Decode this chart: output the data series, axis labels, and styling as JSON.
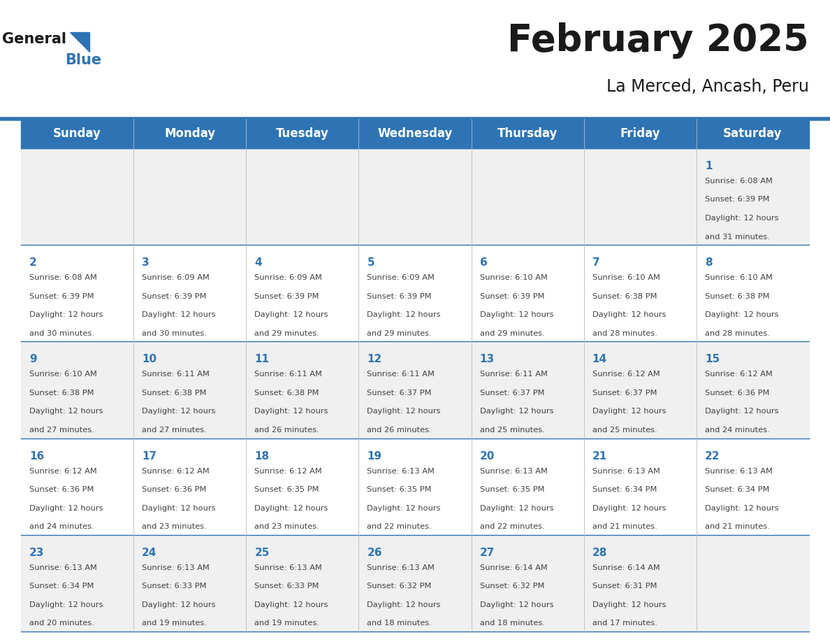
{
  "title": "February 2025",
  "subtitle": "La Merced, Ancash, Peru",
  "header_bg_color": "#2E74B5",
  "header_text_color": "#FFFFFF",
  "weekdays": [
    "Sunday",
    "Monday",
    "Tuesday",
    "Wednesday",
    "Thursday",
    "Friday",
    "Saturday"
  ],
  "alt_row_bg": "#F0F0F0",
  "white_row_bg": "#FFFFFF",
  "day_number_color": "#2E74B5",
  "text_color": "#404040",
  "calendar": [
    [
      null,
      null,
      null,
      null,
      null,
      null,
      1
    ],
    [
      2,
      3,
      4,
      5,
      6,
      7,
      8
    ],
    [
      9,
      10,
      11,
      12,
      13,
      14,
      15
    ],
    [
      16,
      17,
      18,
      19,
      20,
      21,
      22
    ],
    [
      23,
      24,
      25,
      26,
      27,
      28,
      null
    ]
  ],
  "sun_times": {
    "1": {
      "sunrise": "6:08 AM",
      "sunset": "6:39 PM",
      "daylight": "12 hours and 31 minutes."
    },
    "2": {
      "sunrise": "6:08 AM",
      "sunset": "6:39 PM",
      "daylight": "12 hours and 30 minutes."
    },
    "3": {
      "sunrise": "6:09 AM",
      "sunset": "6:39 PM",
      "daylight": "12 hours and 30 minutes."
    },
    "4": {
      "sunrise": "6:09 AM",
      "sunset": "6:39 PM",
      "daylight": "12 hours and 29 minutes."
    },
    "5": {
      "sunrise": "6:09 AM",
      "sunset": "6:39 PM",
      "daylight": "12 hours and 29 minutes."
    },
    "6": {
      "sunrise": "6:10 AM",
      "sunset": "6:39 PM",
      "daylight": "12 hours and 29 minutes."
    },
    "7": {
      "sunrise": "6:10 AM",
      "sunset": "6:38 PM",
      "daylight": "12 hours and 28 minutes."
    },
    "8": {
      "sunrise": "6:10 AM",
      "sunset": "6:38 PM",
      "daylight": "12 hours and 28 minutes."
    },
    "9": {
      "sunrise": "6:10 AM",
      "sunset": "6:38 PM",
      "daylight": "12 hours and 27 minutes."
    },
    "10": {
      "sunrise": "6:11 AM",
      "sunset": "6:38 PM",
      "daylight": "12 hours and 27 minutes."
    },
    "11": {
      "sunrise": "6:11 AM",
      "sunset": "6:38 PM",
      "daylight": "12 hours and 26 minutes."
    },
    "12": {
      "sunrise": "6:11 AM",
      "sunset": "6:37 PM",
      "daylight": "12 hours and 26 minutes."
    },
    "13": {
      "sunrise": "6:11 AM",
      "sunset": "6:37 PM",
      "daylight": "12 hours and 25 minutes."
    },
    "14": {
      "sunrise": "6:12 AM",
      "sunset": "6:37 PM",
      "daylight": "12 hours and 25 minutes."
    },
    "15": {
      "sunrise": "6:12 AM",
      "sunset": "6:36 PM",
      "daylight": "12 hours and 24 minutes."
    },
    "16": {
      "sunrise": "6:12 AM",
      "sunset": "6:36 PM",
      "daylight": "12 hours and 24 minutes."
    },
    "17": {
      "sunrise": "6:12 AM",
      "sunset": "6:36 PM",
      "daylight": "12 hours and 23 minutes."
    },
    "18": {
      "sunrise": "6:12 AM",
      "sunset": "6:35 PM",
      "daylight": "12 hours and 23 minutes."
    },
    "19": {
      "sunrise": "6:13 AM",
      "sunset": "6:35 PM",
      "daylight": "12 hours and 22 minutes."
    },
    "20": {
      "sunrise": "6:13 AM",
      "sunset": "6:35 PM",
      "daylight": "12 hours and 22 minutes."
    },
    "21": {
      "sunrise": "6:13 AM",
      "sunset": "6:34 PM",
      "daylight": "12 hours and 21 minutes."
    },
    "22": {
      "sunrise": "6:13 AM",
      "sunset": "6:34 PM",
      "daylight": "12 hours and 21 minutes."
    },
    "23": {
      "sunrise": "6:13 AM",
      "sunset": "6:34 PM",
      "daylight": "12 hours and 20 minutes."
    },
    "24": {
      "sunrise": "6:13 AM",
      "sunset": "6:33 PM",
      "daylight": "12 hours and 19 minutes."
    },
    "25": {
      "sunrise": "6:13 AM",
      "sunset": "6:33 PM",
      "daylight": "12 hours and 19 minutes."
    },
    "26": {
      "sunrise": "6:13 AM",
      "sunset": "6:32 PM",
      "daylight": "12 hours and 18 minutes."
    },
    "27": {
      "sunrise": "6:14 AM",
      "sunset": "6:32 PM",
      "daylight": "12 hours and 18 minutes."
    },
    "28": {
      "sunrise": "6:14 AM",
      "sunset": "6:31 PM",
      "daylight": "12 hours and 17 minutes."
    }
  }
}
